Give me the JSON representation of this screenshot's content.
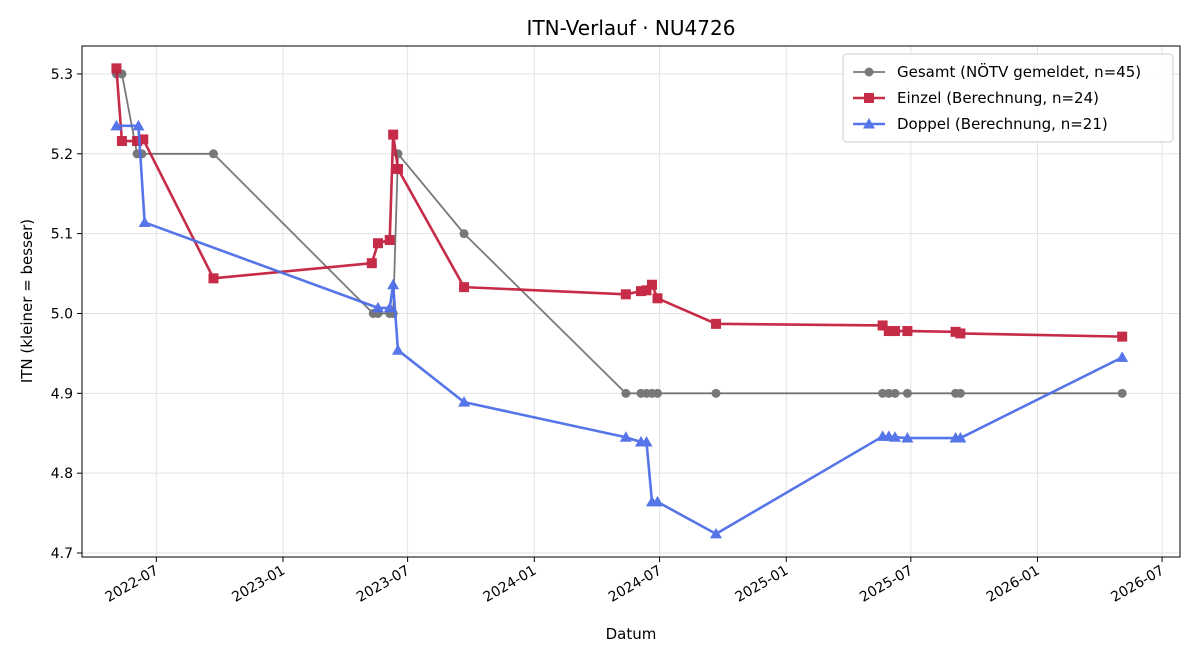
{
  "chart_data": {
    "type": "line",
    "title": "ITN-Verlauf · NU4726",
    "xlabel": "Datum",
    "ylabel": "ITN  (kleiner = besser)",
    "x_type": "date",
    "xlim": [
      "2022-03-15",
      "2026-07-27"
    ],
    "ylim": [
      4.695,
      5.335
    ],
    "grid": true,
    "legend_position": "top-right",
    "x_ticks": [
      "2022-07",
      "2023-01",
      "2023-07",
      "2024-01",
      "2024-07",
      "2025-01",
      "2025-07",
      "2026-01",
      "2026-07"
    ],
    "x_tick_dates": [
      "2022-07-01",
      "2023-01-01",
      "2023-07-01",
      "2024-01-01",
      "2024-07-01",
      "2025-01-01",
      "2025-07-01",
      "2026-01-01",
      "2026-07-01"
    ],
    "y_ticks": [
      4.7,
      4.8,
      4.9,
      5.0,
      5.1,
      5.2,
      5.3
    ],
    "y_tick_labels": [
      "4.7",
      "4.8",
      "4.9",
      "5.0",
      "5.1",
      "5.2",
      "5.3"
    ],
    "series": [
      {
        "name": "Gesamt (NÖTV gemeldet, n=45)",
        "color": "#4d4d4d",
        "marker": "circle",
        "points": [
          {
            "x": "2022-05-04",
            "y": 5.3
          },
          {
            "x": "2022-05-12",
            "y": 5.3
          },
          {
            "x": "2022-06-03",
            "y": 5.2
          },
          {
            "x": "2022-06-10",
            "y": 5.2
          },
          {
            "x": "2022-09-22",
            "y": 5.2
          },
          {
            "x": "2023-05-12",
            "y": 5.0
          },
          {
            "x": "2023-05-19",
            "y": 5.0
          },
          {
            "x": "2023-06-05",
            "y": 5.0
          },
          {
            "x": "2023-06-10",
            "y": 5.0
          },
          {
            "x": "2023-06-17",
            "y": 5.2
          },
          {
            "x": "2023-09-21",
            "y": 5.1
          },
          {
            "x": "2024-05-13",
            "y": 4.9
          },
          {
            "x": "2024-06-04",
            "y": 4.9
          },
          {
            "x": "2024-06-12",
            "y": 4.9
          },
          {
            "x": "2024-06-20",
            "y": 4.9
          },
          {
            "x": "2024-06-28",
            "y": 4.9
          },
          {
            "x": "2024-09-21",
            "y": 4.9
          },
          {
            "x": "2025-05-21",
            "y": 4.9
          },
          {
            "x": "2025-05-30",
            "y": 4.9
          },
          {
            "x": "2025-06-08",
            "y": 4.9
          },
          {
            "x": "2025-06-26",
            "y": 4.9
          },
          {
            "x": "2025-09-04",
            "y": 4.9
          },
          {
            "x": "2025-09-11",
            "y": 4.9
          },
          {
            "x": "2026-05-04",
            "y": 4.9
          }
        ]
      },
      {
        "name": "Einzel (Berechnung, n=24)",
        "color": "#c4203f",
        "marker": "square",
        "points": [
          {
            "x": "2022-05-04",
            "y": 5.307
          },
          {
            "x": "2022-05-12",
            "y": 5.216
          },
          {
            "x": "2022-06-03",
            "y": 5.216
          },
          {
            "x": "2022-06-12",
            "y": 5.218
          },
          {
            "x": "2022-09-22",
            "y": 5.044
          },
          {
            "x": "2023-05-10",
            "y": 5.063
          },
          {
            "x": "2023-05-19",
            "y": 5.088
          },
          {
            "x": "2023-06-05",
            "y": 5.092
          },
          {
            "x": "2023-06-10",
            "y": 5.224
          },
          {
            "x": "2023-06-17",
            "y": 5.181
          },
          {
            "x": "2023-09-21",
            "y": 5.033
          },
          {
            "x": "2024-05-13",
            "y": 5.024
          },
          {
            "x": "2024-06-04",
            "y": 5.028
          },
          {
            "x": "2024-06-12",
            "y": 5.029
          },
          {
            "x": "2024-06-20",
            "y": 5.036
          },
          {
            "x": "2024-06-28",
            "y": 5.019
          },
          {
            "x": "2024-09-21",
            "y": 4.987
          },
          {
            "x": "2025-05-21",
            "y": 4.985
          },
          {
            "x": "2025-05-30",
            "y": 4.978
          },
          {
            "x": "2025-06-08",
            "y": 4.978
          },
          {
            "x": "2025-06-26",
            "y": 4.978
          },
          {
            "x": "2025-09-04",
            "y": 4.977
          },
          {
            "x": "2025-09-11",
            "y": 4.975
          },
          {
            "x": "2026-05-04",
            "y": 4.971
          }
        ]
      },
      {
        "name": "Doppel (Berechnung, n=21)",
        "color": "#4d6ee8",
        "marker": "triangle",
        "points": [
          {
            "x": "2022-05-04",
            "y": 5.235
          },
          {
            "x": "2022-06-05",
            "y": 5.235
          },
          {
            "x": "2022-06-14",
            "y": 5.114
          },
          {
            "x": "2023-05-19",
            "y": 5.007
          },
          {
            "x": "2023-06-05",
            "y": 5.007
          },
          {
            "x": "2023-06-10",
            "y": 5.036
          },
          {
            "x": "2023-06-17",
            "y": 4.954
          },
          {
            "x": "2023-09-21",
            "y": 4.889
          },
          {
            "x": "2024-05-13",
            "y": 4.845
          },
          {
            "x": "2024-06-04",
            "y": 4.839
          },
          {
            "x": "2024-06-12",
            "y": 4.839
          },
          {
            "x": "2024-06-20",
            "y": 4.764
          },
          {
            "x": "2024-06-28",
            "y": 4.764
          },
          {
            "x": "2024-09-21",
            "y": 4.724
          },
          {
            "x": "2025-05-21",
            "y": 4.846
          },
          {
            "x": "2025-05-30",
            "y": 4.846
          },
          {
            "x": "2025-06-08",
            "y": 4.845
          },
          {
            "x": "2025-06-26",
            "y": 4.844
          },
          {
            "x": "2025-09-04",
            "y": 4.844
          },
          {
            "x": "2025-09-11",
            "y": 4.844
          },
          {
            "x": "2026-05-04",
            "y": 4.945
          }
        ]
      }
    ]
  }
}
